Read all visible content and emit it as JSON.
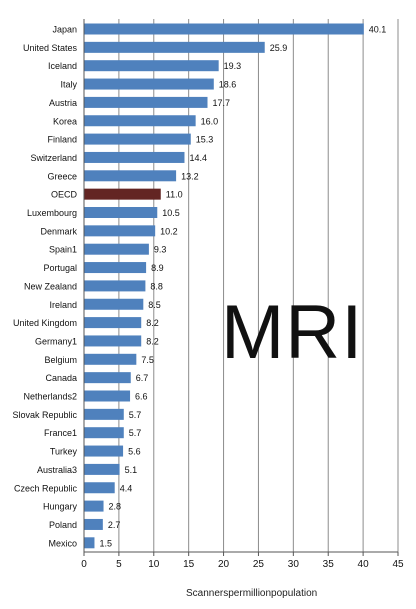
{
  "chart_data": {
    "type": "bar",
    "orientation": "horizontal",
    "categories": [
      "Japan",
      "United States",
      "Iceland",
      "Italy",
      "Austria",
      "Korea",
      "Finland",
      "Switzerland",
      "Greece",
      "OECD",
      "Luxembourg",
      "Denmark",
      "Spain1",
      "Portugal",
      "New Zealand",
      "Ireland",
      "United Kingdom",
      "Germany1",
      "Belgium",
      "Canada",
      "Netherlands2",
      "Slovak Republic",
      "France1",
      "Turkey",
      "Australia3",
      "Czech Republic",
      "Hungary",
      "Poland",
      "Mexico"
    ],
    "values": [
      40.1,
      25.9,
      19.3,
      18.6,
      17.7,
      16.0,
      15.3,
      14.4,
      13.2,
      11.0,
      10.5,
      10.2,
      9.3,
      8.9,
      8.8,
      8.5,
      8.2,
      8.2,
      7.5,
      6.7,
      6.6,
      5.7,
      5.7,
      5.6,
      5.1,
      4.4,
      2.8,
      2.7,
      1.5
    ],
    "value_labels": [
      "40.1",
      "25.9",
      "19.3",
      "18.6",
      "17.7",
      "16.0",
      "15.3",
      "14.4",
      "13.2",
      "11.0",
      "10.5",
      "10.2",
      "9.3",
      "8.9",
      "8.8",
      "8.5",
      "8.2",
      "8.2",
      "7.5",
      "6.7",
      "6.6",
      "5.7",
      "5.7",
      "5.6",
      "5.1",
      "4.4",
      "2.8",
      "2.7",
      "1.5"
    ],
    "highlight_category": "OECD",
    "xlabel": "Scannerspermillionpopulation",
    "xlim": [
      0,
      45
    ],
    "xticks": [
      0,
      5,
      10,
      15,
      20,
      25,
      30,
      35,
      40,
      45
    ],
    "grid": true,
    "colors": {
      "bar": "#4f81bd",
      "highlight": "#632523",
      "grid": "#8c8c8c",
      "text": "#111111"
    }
  },
  "annotation": "MRI"
}
